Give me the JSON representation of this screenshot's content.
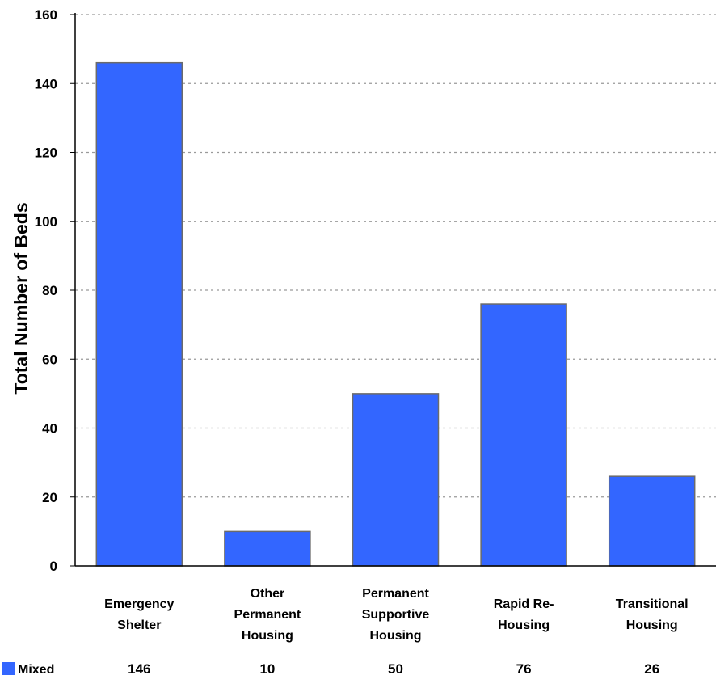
{
  "chart_data": {
    "type": "bar",
    "title": "",
    "xlabel": "",
    "ylabel": "Total Number of Beds",
    "ylim": [
      0,
      160
    ],
    "yticks": [
      0,
      20,
      40,
      60,
      80,
      100,
      120,
      140,
      160
    ],
    "grid": "horizontal dotted",
    "categories": [
      [
        "Emergency",
        "Shelter"
      ],
      [
        "Other",
        "Permanent",
        "Housing"
      ],
      [
        "Permanent",
        "Supportive",
        "Housing"
      ],
      [
        "Rapid Re-",
        "Housing"
      ],
      [
        "Transitional",
        "Housing"
      ]
    ],
    "series": [
      {
        "name": "Mixed",
        "values": [
          146,
          10,
          50,
          76,
          26
        ],
        "color": "#3366ff"
      }
    ],
    "legend": "bottom-left data table"
  }
}
